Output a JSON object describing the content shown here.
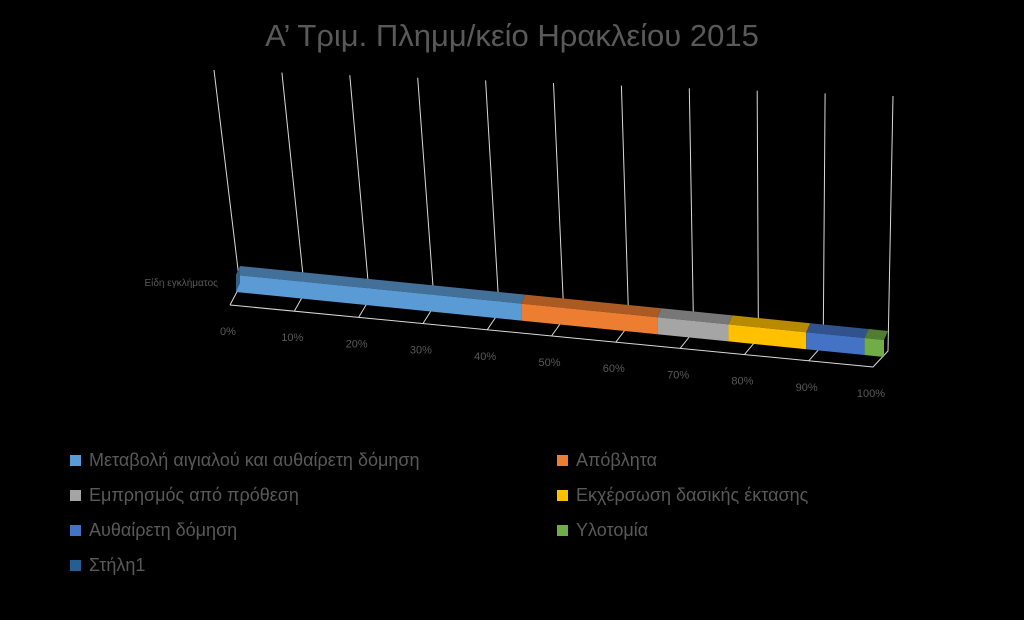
{
  "chart_data": {
    "type": "bar",
    "orientation": "horizontal",
    "stacking": "percent",
    "style": "3d",
    "title": "Α’ Τριμ. Πλημμ/κείο Ηρακλείου 2015",
    "categories": [
      "Είδη εγκλήματος"
    ],
    "x_ticks": [
      "0%",
      "10%",
      "20%",
      "30%",
      "40%",
      "50%",
      "60%",
      "70%",
      "80%",
      "90%",
      "100%"
    ],
    "xlim": [
      0,
      100
    ],
    "grid": true,
    "legend_position": "bottom",
    "series": [
      {
        "name": "Μεταβολή αιγιαλού και αυθαίρετη δόμηση",
        "values": [
          44
        ],
        "color": "#5B9BD5"
      },
      {
        "name": "Απόβλητα",
        "values": [
          21
        ],
        "color": "#ED7D31"
      },
      {
        "name": "Εμπρησμός από πρόθεση",
        "values": [
          11
        ],
        "color": "#A5A5A5"
      },
      {
        "name": "Εκχέρσωση δασικής έκτασης",
        "values": [
          12
        ],
        "color": "#FFC000"
      },
      {
        "name": "Αυθαίρετη δόμηση",
        "values": [
          9
        ],
        "color": "#4472C4"
      },
      {
        "name": "Υλοτομία",
        "values": [
          3
        ],
        "color": "#70AD47"
      },
      {
        "name": "Στήλη1",
        "values": [
          0
        ],
        "color": "#255E91"
      }
    ],
    "axis_color": "#D9D9D9",
    "text_color": "#595959"
  }
}
